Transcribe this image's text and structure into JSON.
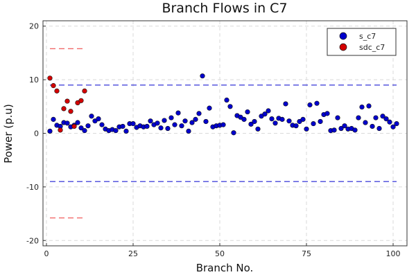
{
  "chart_data": {
    "type": "scatter",
    "title": "Branch Flows in C7",
    "xlabel": "Branch No.",
    "ylabel": "Power (p.u)",
    "xlim": [
      -1,
      104
    ],
    "ylim": [
      -21,
      21
    ],
    "xticks": [
      0,
      25,
      50,
      75,
      100
    ],
    "yticks": [
      -20,
      -10,
      0,
      10,
      20
    ],
    "grid": true,
    "legend_position": "top-right",
    "series": [
      {
        "name": "s_c7",
        "color": "#0000CD",
        "points": [
          [
            1,
            0.4
          ],
          [
            2,
            2.6
          ],
          [
            3,
            1.5
          ],
          [
            4,
            1.3
          ],
          [
            5,
            2.0
          ],
          [
            6,
            1.9
          ],
          [
            7,
            1.2
          ],
          [
            8,
            1.5
          ],
          [
            9,
            2.0
          ],
          [
            10,
            1.0
          ],
          [
            11,
            0.5
          ],
          [
            12,
            1.4
          ],
          [
            13,
            3.2
          ],
          [
            14,
            2.3
          ],
          [
            15,
            2.7
          ],
          [
            16,
            1.6
          ],
          [
            17,
            0.8
          ],
          [
            18,
            0.5
          ],
          [
            19,
            0.7
          ],
          [
            20,
            0.5
          ],
          [
            21,
            1.2
          ],
          [
            22,
            1.3
          ],
          [
            23,
            0.4
          ],
          [
            24,
            1.8
          ],
          [
            25,
            1.8
          ],
          [
            26,
            1.1
          ],
          [
            27,
            1.4
          ],
          [
            28,
            1.2
          ],
          [
            29,
            1.3
          ],
          [
            30,
            2.3
          ],
          [
            31,
            1.6
          ],
          [
            32,
            1.9
          ],
          [
            33,
            1.0
          ],
          [
            34,
            2.4
          ],
          [
            35,
            0.9
          ],
          [
            36,
            2.9
          ],
          [
            37,
            1.6
          ],
          [
            38,
            3.8
          ],
          [
            39,
            1.4
          ],
          [
            40,
            2.3
          ],
          [
            41,
            0.4
          ],
          [
            42,
            2.0
          ],
          [
            43,
            2.6
          ],
          [
            44,
            3.7
          ],
          [
            45,
            10.7
          ],
          [
            46,
            2.2
          ],
          [
            47,
            4.7
          ],
          [
            48,
            1.2
          ],
          [
            49,
            1.4
          ],
          [
            50,
            1.5
          ],
          [
            51,
            1.6
          ],
          [
            52,
            6.2
          ],
          [
            53,
            5.0
          ],
          [
            54,
            0.1
          ],
          [
            55,
            3.3
          ],
          [
            56,
            3.0
          ],
          [
            57,
            2.6
          ],
          [
            58,
            4.0
          ],
          [
            59,
            1.7
          ],
          [
            60,
            2.2
          ],
          [
            61,
            0.8
          ],
          [
            62,
            3.2
          ],
          [
            63,
            3.6
          ],
          [
            64,
            4.2
          ],
          [
            65,
            2.7
          ],
          [
            66,
            1.9
          ],
          [
            67,
            2.8
          ],
          [
            68,
            2.6
          ],
          [
            69,
            5.5
          ],
          [
            70,
            2.3
          ],
          [
            71,
            1.5
          ],
          [
            72,
            1.4
          ],
          [
            73,
            2.2
          ],
          [
            74,
            2.6
          ],
          [
            75,
            0.8
          ],
          [
            76,
            5.3
          ],
          [
            77,
            1.8
          ],
          [
            78,
            5.6
          ],
          [
            79,
            2.2
          ],
          [
            80,
            3.5
          ],
          [
            81,
            3.7
          ],
          [
            82,
            0.5
          ],
          [
            83,
            0.6
          ],
          [
            84,
            2.9
          ],
          [
            85,
            0.9
          ],
          [
            86,
            1.4
          ],
          [
            87,
            0.8
          ],
          [
            88,
            0.9
          ],
          [
            89,
            0.6
          ],
          [
            90,
            2.9
          ],
          [
            91,
            4.9
          ],
          [
            92,
            2.0
          ],
          [
            93,
            5.1
          ],
          [
            94,
            1.3
          ],
          [
            95,
            2.9
          ],
          [
            96,
            0.9
          ],
          [
            97,
            3.2
          ],
          [
            98,
            2.7
          ],
          [
            99,
            2.1
          ],
          [
            100,
            1.2
          ],
          [
            101,
            1.8
          ]
        ]
      },
      {
        "name": "sdc_c7",
        "color": "#D40000",
        "points": [
          [
            1,
            10.3
          ],
          [
            2,
            8.9
          ],
          [
            3,
            7.9
          ],
          [
            4,
            0.6
          ],
          [
            5,
            4.6
          ],
          [
            6,
            6.0
          ],
          [
            7,
            4.1
          ],
          [
            8,
            1.3
          ],
          [
            9,
            5.7
          ],
          [
            10,
            6.1
          ],
          [
            11,
            7.9
          ]
        ]
      }
    ],
    "limits": [
      {
        "color": "#0000CD",
        "y": 9.0,
        "x": [
          1,
          101
        ]
      },
      {
        "color": "#0000CD",
        "y": -9.0,
        "x": [
          1,
          101
        ]
      },
      {
        "color": "#EE3333",
        "y": 15.8,
        "x": [
          1,
          11
        ]
      },
      {
        "color": "#EE3333",
        "y": -15.8,
        "x": [
          1,
          11
        ]
      }
    ]
  }
}
